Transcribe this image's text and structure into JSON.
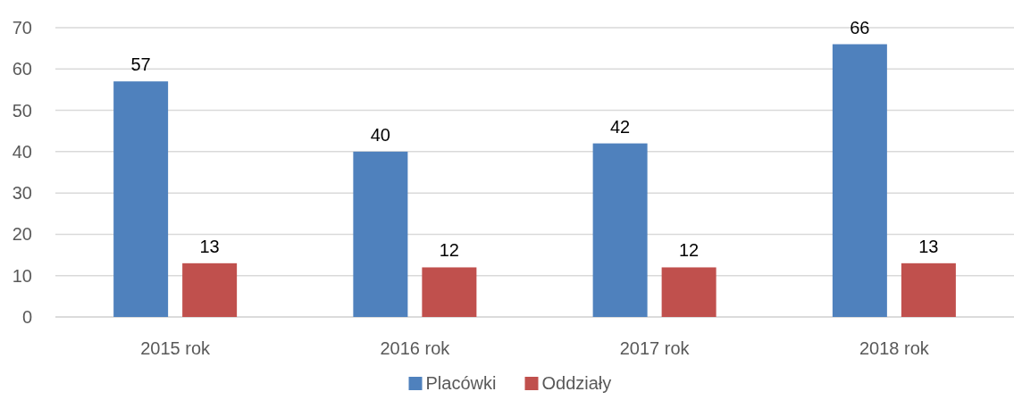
{
  "chart_data": {
    "type": "bar",
    "categories": [
      "2015 rok",
      "2016 rok",
      "2017 rok",
      "2018 rok"
    ],
    "series": [
      {
        "name": "Placówki",
        "color": "#4f81bd",
        "values": [
          57,
          40,
          42,
          66
        ]
      },
      {
        "name": "Oddziały",
        "color": "#c0504d",
        "values": [
          13,
          12,
          12,
          13
        ]
      }
    ],
    "ylim": [
      0,
      70
    ],
    "yticks": [
      0,
      10,
      20,
      30,
      40,
      50,
      60,
      70
    ],
    "grid": "y",
    "legend": "bottom",
    "data_labels": true
  }
}
